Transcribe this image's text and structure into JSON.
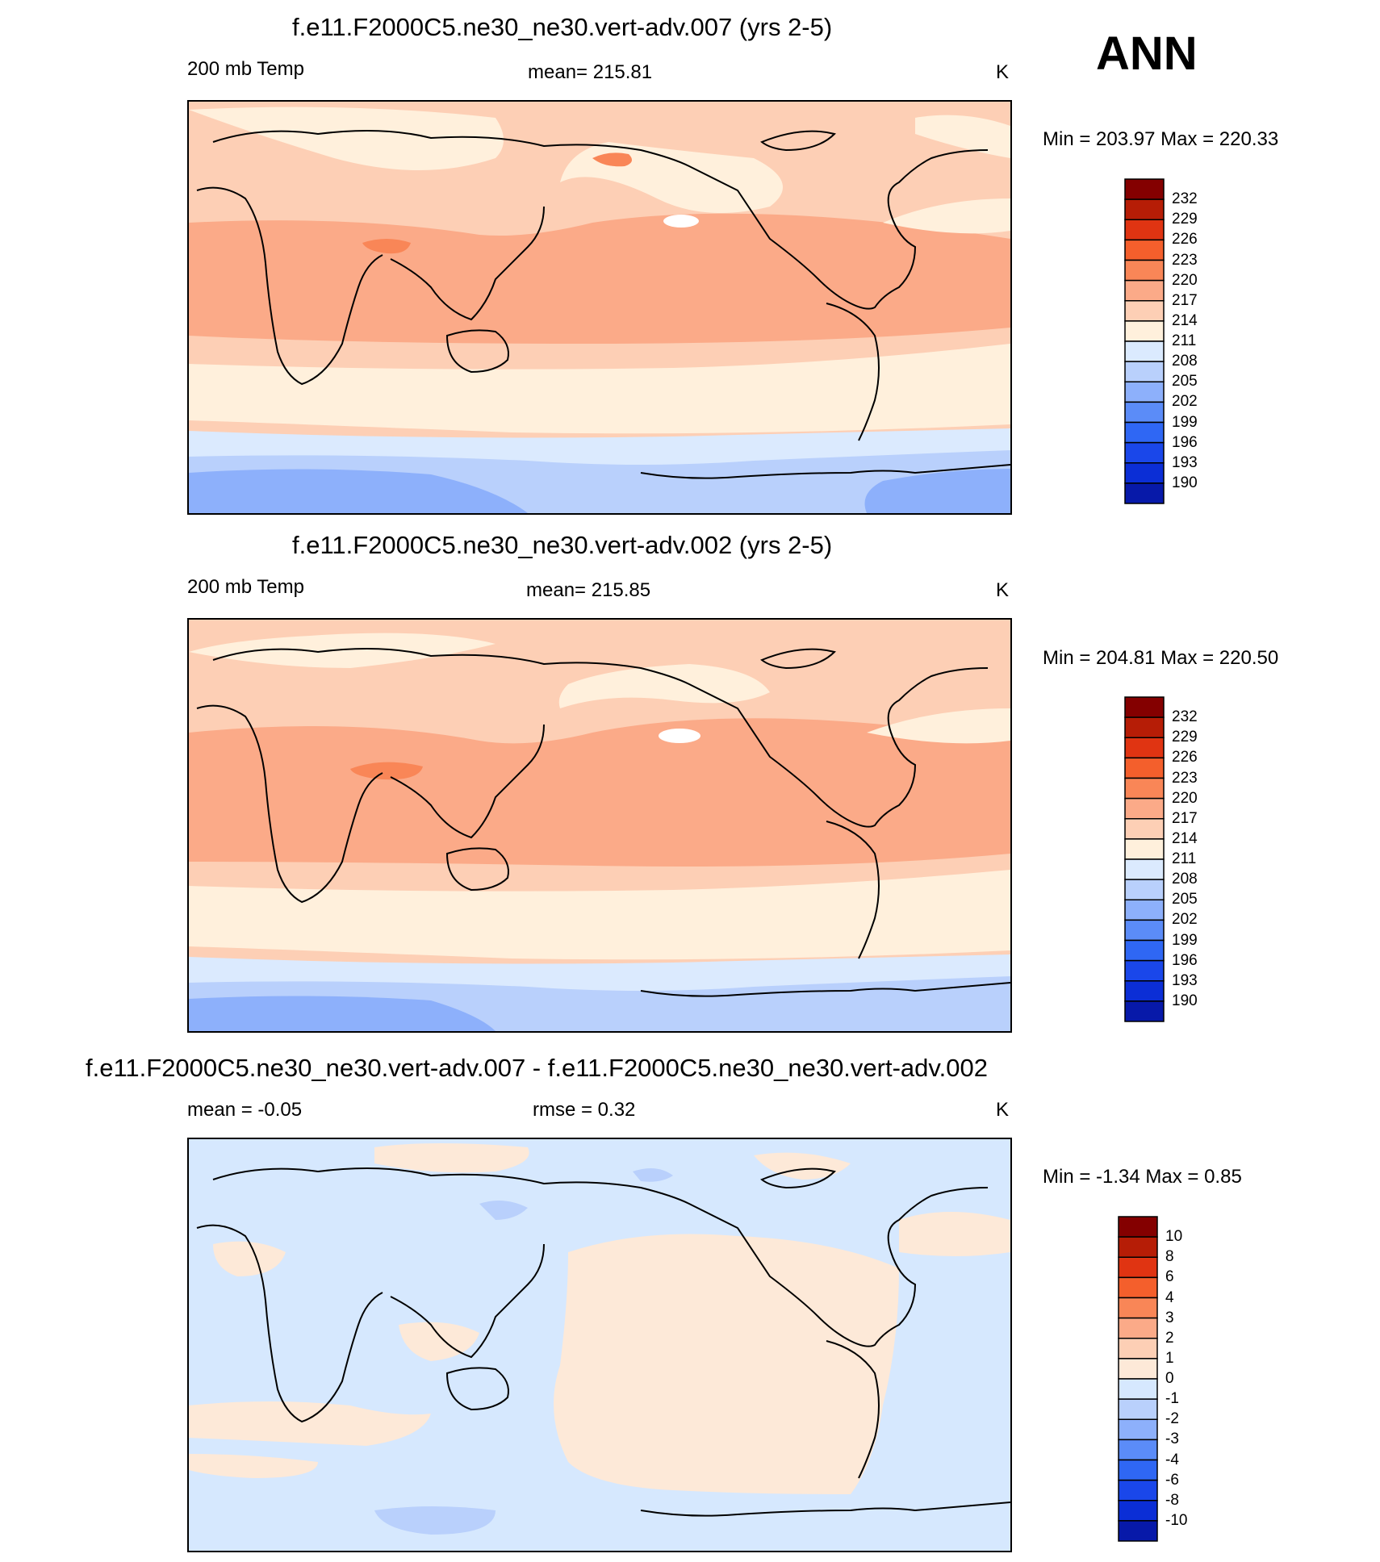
{
  "season": "ANN",
  "colors": {
    "temp_scale": [
      "#00007a",
      "#0719a9",
      "#0b2ed6",
      "#1a47ea",
      "#2f67f4",
      "#5b8cf8",
      "#8db0fb",
      "#b9d0fc",
      "#dbeafe",
      "#fff0dc",
      "#fdcfb5",
      "#fbaa88",
      "#f98657",
      "#f45f2c",
      "#e03412",
      "#b61d06",
      "#840000"
    ],
    "diff_scale": [
      "#00007a",
      "#0719a9",
      "#0b2ed6",
      "#1a47ea",
      "#2f67f4",
      "#5b8cf8",
      "#8db0fb",
      "#b9d0fc",
      "#d6e8fe",
      "#fde9d8",
      "#fdcfb5",
      "#fbaa88",
      "#f98657",
      "#f45f2c",
      "#e03412",
      "#b61d06",
      "#840000"
    ]
  },
  "panels": [
    {
      "title": "f.e11.F2000C5.ne30_ne30.vert-adv.007 (yrs 2-5)",
      "left_label": "200 mb Temp",
      "center_label": "mean= 215.81",
      "units": "K",
      "range_label": "Min = 203.97 Max = 220.33",
      "colorbar_labels": [
        "232",
        "229",
        "226",
        "223",
        "220",
        "217",
        "214",
        "211",
        "208",
        "205",
        "202",
        "199",
        "196",
        "193",
        "190"
      ],
      "map_data": {
        "scale": "temp",
        "mean": 215.81,
        "min": 203.97,
        "max": 220.33
      }
    },
    {
      "title": "f.e11.F2000C5.ne30_ne30.vert-adv.002 (yrs 2-5)",
      "left_label": "200 mb Temp",
      "center_label": "mean= 215.85",
      "units": "K",
      "range_label": "Min = 204.81 Max = 220.50",
      "colorbar_labels": [
        "232",
        "229",
        "226",
        "223",
        "220",
        "217",
        "214",
        "211",
        "208",
        "205",
        "202",
        "199",
        "196",
        "193",
        "190"
      ],
      "map_data": {
        "scale": "temp",
        "mean": 215.85,
        "min": 204.81,
        "max": 220.5
      }
    },
    {
      "title": "f.e11.F2000C5.ne30_ne30.vert-adv.007 - f.e11.F2000C5.ne30_ne30.vert-adv.002",
      "left_label": "mean =  -0.05",
      "center_label": "rmse =   0.32",
      "units": "K",
      "range_label": "Min =  -1.34 Max =   0.85",
      "colorbar_labels": [
        "10",
        "8",
        "6",
        "4",
        "3",
        "2",
        "1",
        "0",
        "-1",
        "-2",
        "-3",
        "-4",
        "-6",
        "-8",
        "-10"
      ],
      "map_data": {
        "scale": "diff",
        "mean": -0.05,
        "rmse": 0.32,
        "min": -1.34,
        "max": 0.85
      }
    }
  ]
}
